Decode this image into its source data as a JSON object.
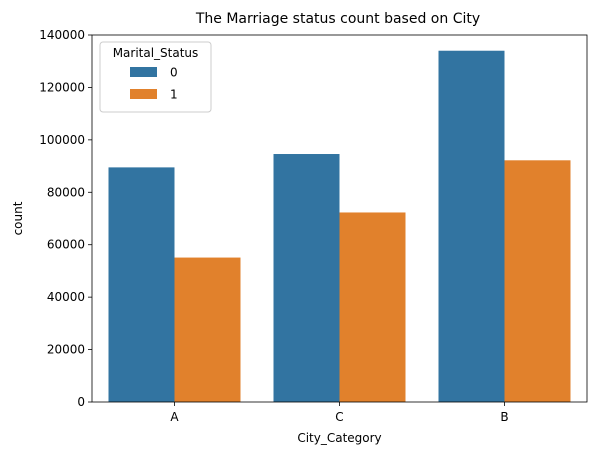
{
  "chart_data": {
    "type": "bar",
    "title": "The Marriage status count based on City",
    "xlabel": "City_Category",
    "ylabel": "count",
    "categories": [
      "A",
      "C",
      "B"
    ],
    "series": [
      {
        "name": "0",
        "color": "#3274a1",
        "values": [
          89500,
          94600,
          134000
        ]
      },
      {
        "name": "1",
        "color": "#e1812c",
        "values": [
          55100,
          72300,
          92200
        ]
      }
    ],
    "ylim": [
      0,
      140000
    ],
    "yticks": [
      "0",
      "20000",
      "40000",
      "60000",
      "80000",
      "100000",
      "120000",
      "140000"
    ],
    "grid": false,
    "legend": {
      "title": "Marital_Status",
      "placement": "top-left"
    }
  }
}
